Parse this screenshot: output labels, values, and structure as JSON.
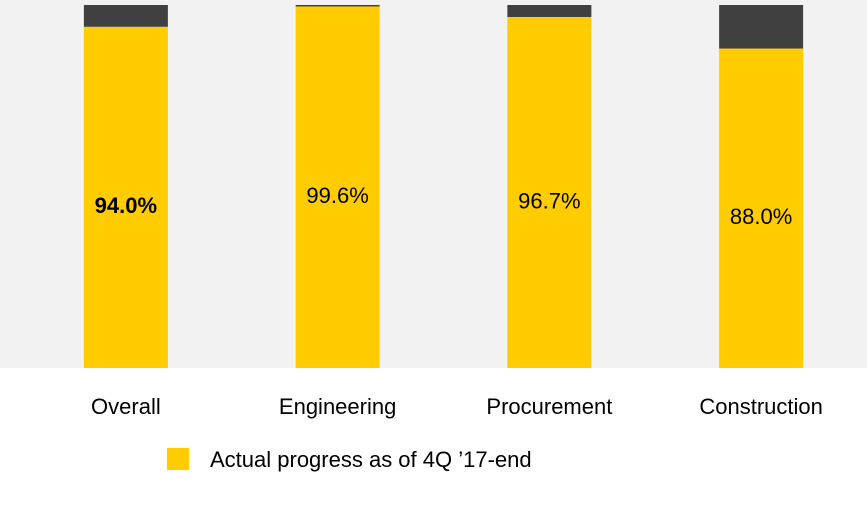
{
  "chart_data": {
    "type": "stacked_bar",
    "categories": [
      "Overall",
      "Engineering",
      "Procurement",
      "Construction"
    ],
    "series": [
      {
        "name": "Actual progress as of 4Q ’17-end",
        "color": "#ffcc00",
        "values": [
          94.0,
          99.6,
          96.7,
          88.0
        ],
        "value_labels": [
          "94.0%",
          "99.6%",
          "96.7%",
          "88.0%"
        ]
      },
      {
        "color": "#404040",
        "values": [
          6.0,
          0.4,
          3.3,
          12.0
        ]
      }
    ],
    "ylim": [
      0,
      100
    ],
    "plot_background": "#f2f2f2"
  }
}
